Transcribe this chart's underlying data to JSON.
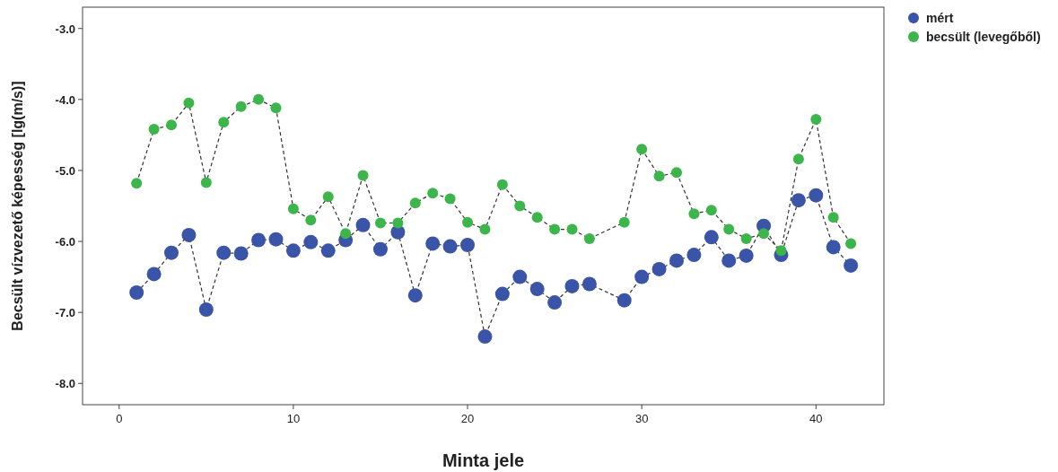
{
  "chart_data": {
    "type": "line",
    "xlabel": "Minta jele",
    "ylabel": "Becsült vízvezető képesség [lg(m/s)]",
    "x": [
      1,
      2,
      3,
      4,
      5,
      6,
      7,
      8,
      9,
      10,
      11,
      12,
      13,
      14,
      15,
      16,
      17,
      18,
      19,
      20,
      21,
      22,
      23,
      24,
      25,
      26,
      27,
      29,
      30,
      31,
      32,
      33,
      34,
      35,
      36,
      37,
      38,
      39,
      40,
      41,
      42
    ],
    "xlim": [
      -2.1,
      43.9
    ],
    "xticks": [
      0,
      10,
      20,
      30,
      40
    ],
    "ylim": [
      -8.3,
      -2.7
    ],
    "yticks": [
      {
        "value": -8,
        "label": "-8.0"
      },
      {
        "value": -7,
        "label": "-7.0"
      },
      {
        "value": -6,
        "label": "-6.0"
      },
      {
        "value": -5,
        "label": "-5.0"
      },
      {
        "value": -4,
        "label": "-4.0"
      },
      {
        "value": -3,
        "label": "-3.0"
      }
    ],
    "grid": false,
    "legend": "top right",
    "marker": "circle",
    "line_style": "dashed",
    "series": [
      {
        "name": "mért",
        "color": "#3a55a8",
        "values": [
          -6.72,
          -6.46,
          -6.16,
          -5.91,
          -6.96,
          -6.16,
          -6.17,
          -5.98,
          -5.97,
          -6.13,
          -6.01,
          -6.13,
          -5.98,
          -5.77,
          -6.11,
          -5.87,
          -6.76,
          -6.03,
          -6.07,
          -6.05,
          -7.34,
          -6.74,
          -6.5,
          -6.67,
          -6.86,
          -6.63,
          -6.6,
          -6.83,
          -6.5,
          -6.39,
          -6.27,
          -6.19,
          -5.94,
          -6.27,
          -6.2,
          -5.78,
          -6.19,
          -5.42,
          -5.35,
          -6.08,
          -6.34
        ]
      },
      {
        "name": "becsült (levegőből)",
        "color": "#3cb54a",
        "values": [
          -5.18,
          -4.42,
          -4.36,
          -4.05,
          -5.17,
          -4.32,
          -4.1,
          -4.0,
          -4.12,
          -5.54,
          -5.7,
          -5.37,
          -5.89,
          -5.07,
          -5.74,
          -5.74,
          -5.46,
          -5.32,
          -5.4,
          -5.73,
          -5.83,
          -5.2,
          -5.5,
          -5.66,
          -5.83,
          -5.83,
          -5.96,
          -5.73,
          -4.7,
          -5.08,
          -5.03,
          -5.61,
          -5.56,
          -5.83,
          -5.96,
          -5.89,
          -6.13,
          -4.84,
          -4.28,
          -5.66,
          -6.03
        ]
      }
    ]
  }
}
